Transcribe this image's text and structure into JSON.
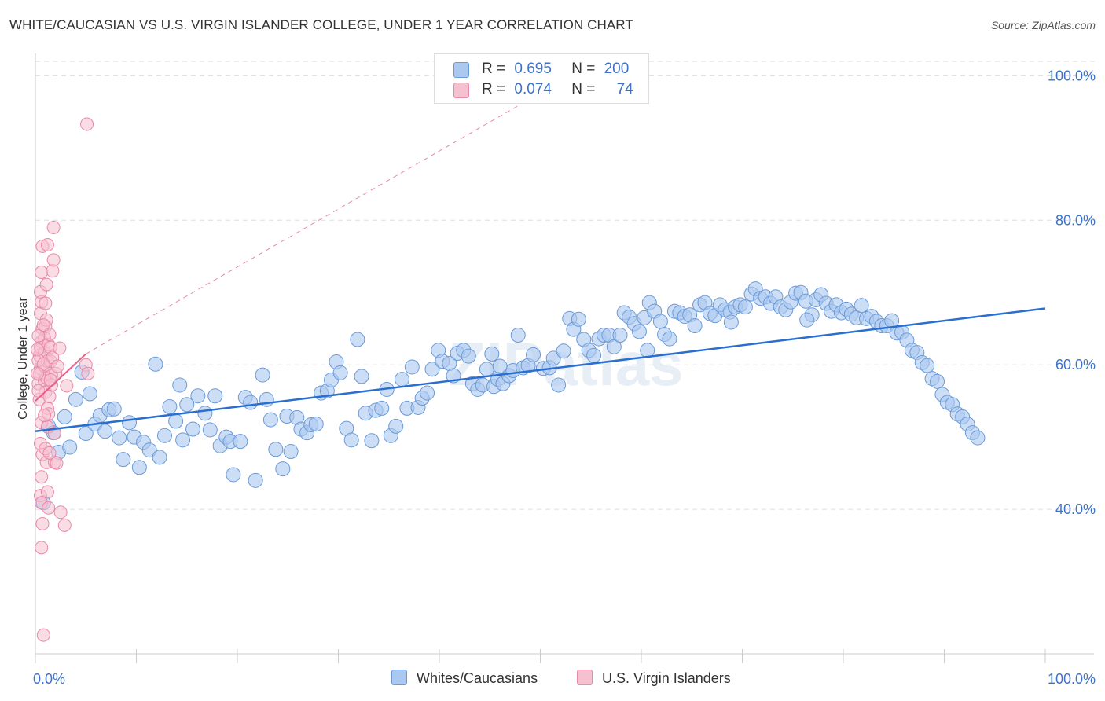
{
  "title": "WHITE/CAUCASIAN VS U.S. VIRGIN ISLANDER COLLEGE, UNDER 1 YEAR CORRELATION CHART",
  "source": "Source: ZipAtlas.com",
  "legend_top": {
    "rows": [
      {
        "r_label": "R =",
        "r_value": "0.695",
        "n_label": "N =",
        "n_value": "200"
      },
      {
        "r_label": "R =",
        "r_value": "0.074",
        "n_label": "N =",
        "n_value": "74"
      }
    ]
  },
  "colors": {
    "blue_fill": "#aac8f0",
    "blue_stroke": "#6a9ad8",
    "blue_line": "#2a6fcf",
    "pink_fill": "#f6c0d0",
    "pink_stroke": "#e889a8",
    "pink_line": "#e8608a",
    "grid": "#dddddd",
    "axis_label": "#3d72c8"
  },
  "chart_data": {
    "type": "scatter",
    "title": "WHITE/CAUCASIAN VS U.S. VIRGIN ISLANDER COLLEGE, UNDER 1 YEAR CORRELATION CHART",
    "xlabel": "",
    "ylabel": "College, Under 1 year",
    "xlim": [
      0,
      100
    ],
    "ylim": [
      20,
      102
    ],
    "x_tick_labels": [
      "0.0%",
      "100.0%"
    ],
    "y_ticks": [
      40,
      60,
      80,
      100
    ],
    "y_tick_labels": [
      "40.0%",
      "60.0%",
      "80.0%",
      "100.0%"
    ],
    "grid": true,
    "legend_position": "top-center",
    "series": [
      {
        "name": "Whites/Caucasians",
        "r": 0.695,
        "n": 200,
        "trend": {
          "x": [
            0,
            100
          ],
          "y": [
            50.8,
            67.8
          ]
        },
        "points": [
          [
            0.8,
            40.9
          ],
          [
            1.3,
            51.5
          ],
          [
            1.8,
            50.6
          ],
          [
            2.3,
            47.9
          ],
          [
            2.9,
            52.8
          ],
          [
            3.4,
            48.6
          ],
          [
            4.0,
            55.2
          ],
          [
            4.6,
            59.0
          ],
          [
            5.0,
            50.5
          ],
          [
            5.4,
            56.0
          ],
          [
            5.9,
            51.8
          ],
          [
            6.4,
            53.0
          ],
          [
            6.9,
            50.8
          ],
          [
            7.3,
            53.8
          ],
          [
            7.8,
            53.9
          ],
          [
            8.3,
            49.9
          ],
          [
            8.7,
            46.9
          ],
          [
            9.3,
            52.0
          ],
          [
            9.8,
            50.0
          ],
          [
            10.3,
            45.8
          ],
          [
            10.7,
            49.3
          ],
          [
            11.3,
            48.2
          ],
          [
            11.9,
            60.1
          ],
          [
            12.3,
            47.2
          ],
          [
            12.8,
            50.2
          ],
          [
            13.3,
            54.2
          ],
          [
            13.9,
            52.2
          ],
          [
            14.3,
            57.2
          ],
          [
            14.6,
            49.6
          ],
          [
            15.0,
            54.5
          ],
          [
            15.6,
            51.1
          ],
          [
            16.1,
            55.7
          ],
          [
            16.8,
            53.3
          ],
          [
            17.3,
            51.0
          ],
          [
            17.8,
            55.7
          ],
          [
            18.3,
            48.8
          ],
          [
            18.9,
            50.0
          ],
          [
            19.3,
            49.4
          ],
          [
            19.6,
            44.8
          ],
          [
            20.3,
            49.4
          ],
          [
            20.8,
            55.5
          ],
          [
            21.3,
            54.8
          ],
          [
            21.8,
            44.0
          ],
          [
            22.5,
            58.6
          ],
          [
            22.9,
            55.2
          ],
          [
            23.3,
            52.4
          ],
          [
            23.8,
            48.3
          ],
          [
            24.5,
            45.6
          ],
          [
            24.9,
            52.9
          ],
          [
            25.3,
            48.0
          ],
          [
            25.9,
            52.7
          ],
          [
            26.3,
            51.1
          ],
          [
            26.9,
            50.6
          ],
          [
            27.3,
            51.7
          ],
          [
            27.8,
            51.8
          ],
          [
            28.3,
            56.1
          ],
          [
            28.9,
            56.4
          ],
          [
            29.3,
            57.9
          ],
          [
            29.8,
            60.4
          ],
          [
            30.2,
            58.9
          ],
          [
            30.8,
            51.2
          ],
          [
            31.3,
            49.6
          ],
          [
            31.9,
            63.5
          ],
          [
            32.3,
            58.4
          ],
          [
            32.7,
            53.3
          ],
          [
            33.3,
            49.5
          ],
          [
            33.7,
            53.7
          ],
          [
            34.3,
            54.0
          ],
          [
            34.8,
            56.6
          ],
          [
            35.2,
            50.2
          ],
          [
            35.7,
            51.5
          ],
          [
            36.3,
            58.0
          ],
          [
            36.8,
            54.0
          ],
          [
            37.3,
            59.7
          ],
          [
            37.9,
            54.1
          ],
          [
            38.3,
            55.4
          ],
          [
            38.8,
            56.1
          ],
          [
            39.3,
            59.4
          ],
          [
            39.9,
            62.0
          ],
          [
            40.3,
            60.5
          ],
          [
            41.0,
            60.2
          ],
          [
            41.4,
            58.5
          ],
          [
            41.8,
            61.6
          ],
          [
            42.4,
            62.0
          ],
          [
            42.9,
            61.2
          ],
          [
            43.3,
            57.4
          ],
          [
            43.8,
            56.6
          ],
          [
            44.3,
            57.2
          ],
          [
            44.7,
            59.4
          ],
          [
            45.4,
            57.0
          ],
          [
            45.8,
            58.0
          ],
          [
            46.3,
            57.4
          ],
          [
            46.9,
            58.5
          ],
          [
            47.3,
            59.2
          ],
          [
            47.8,
            64.1
          ],
          [
            48.3,
            59.6
          ],
          [
            48.8,
            59.9
          ],
          [
            49.3,
            61.4
          ],
          [
            50.3,
            59.5
          ],
          [
            50.9,
            59.6
          ],
          [
            51.3,
            60.9
          ],
          [
            51.8,
            57.2
          ],
          [
            52.3,
            61.9
          ],
          [
            52.9,
            66.4
          ],
          [
            53.3,
            64.9
          ],
          [
            53.8,
            66.3
          ],
          [
            54.3,
            63.5
          ],
          [
            54.8,
            62.0
          ],
          [
            55.3,
            61.3
          ],
          [
            55.8,
            63.6
          ],
          [
            56.3,
            64.1
          ],
          [
            56.8,
            64.1
          ],
          [
            57.3,
            62.5
          ],
          [
            57.9,
            64.1
          ],
          [
            58.3,
            67.2
          ],
          [
            58.8,
            66.6
          ],
          [
            59.3,
            65.7
          ],
          [
            59.8,
            64.6
          ],
          [
            60.3,
            66.5
          ],
          [
            60.8,
            68.6
          ],
          [
            61.3,
            67.4
          ],
          [
            61.9,
            66.0
          ],
          [
            62.3,
            64.2
          ],
          [
            62.8,
            63.6
          ],
          [
            63.3,
            67.4
          ],
          [
            63.8,
            67.2
          ],
          [
            64.3,
            66.7
          ],
          [
            64.8,
            66.9
          ],
          [
            65.3,
            65.4
          ],
          [
            65.8,
            68.3
          ],
          [
            66.3,
            68.6
          ],
          [
            66.8,
            67.1
          ],
          [
            67.3,
            66.8
          ],
          [
            67.8,
            68.3
          ],
          [
            68.3,
            67.6
          ],
          [
            68.8,
            67.3
          ],
          [
            69.3,
            68.0
          ],
          [
            69.8,
            68.3
          ],
          [
            70.3,
            68.0
          ],
          [
            70.9,
            69.8
          ],
          [
            71.3,
            70.5
          ],
          [
            71.8,
            69.2
          ],
          [
            72.3,
            69.4
          ],
          [
            72.8,
            68.5
          ],
          [
            73.3,
            69.4
          ],
          [
            73.8,
            68.0
          ],
          [
            74.3,
            67.6
          ],
          [
            74.8,
            68.7
          ],
          [
            75.3,
            69.9
          ],
          [
            75.8,
            70.0
          ],
          [
            76.3,
            68.8
          ],
          [
            76.9,
            66.9
          ],
          [
            77.3,
            69.0
          ],
          [
            77.8,
            69.7
          ],
          [
            78.3,
            68.5
          ],
          [
            78.8,
            67.4
          ],
          [
            79.3,
            68.3
          ],
          [
            79.8,
            67.2
          ],
          [
            80.3,
            67.7
          ],
          [
            80.8,
            67.0
          ],
          [
            81.3,
            66.5
          ],
          [
            81.8,
            68.2
          ],
          [
            82.3,
            66.4
          ],
          [
            82.8,
            66.7
          ],
          [
            83.3,
            66.0
          ],
          [
            83.8,
            65.4
          ],
          [
            84.3,
            65.4
          ],
          [
            84.8,
            66.1
          ],
          [
            85.3,
            64.4
          ],
          [
            85.8,
            64.5
          ],
          [
            86.3,
            63.4
          ],
          [
            86.8,
            62.0
          ],
          [
            87.3,
            61.7
          ],
          [
            87.8,
            60.3
          ],
          [
            88.3,
            59.9
          ],
          [
            88.8,
            58.1
          ],
          [
            89.3,
            57.7
          ],
          [
            89.8,
            55.9
          ],
          [
            90.3,
            54.8
          ],
          [
            90.8,
            54.5
          ],
          [
            91.3,
            53.2
          ],
          [
            91.8,
            52.8
          ],
          [
            92.3,
            51.8
          ],
          [
            92.8,
            50.6
          ],
          [
            93.3,
            49.9
          ],
          [
            45.2,
            61.5
          ],
          [
            46.0,
            59.8
          ],
          [
            60.6,
            62.0
          ],
          [
            68.9,
            65.9
          ],
          [
            76.4,
            66.2
          ]
        ]
      },
      {
        "name": "U.S. Virgin Islanders",
        "r": 0.074,
        "n": 74,
        "trend": {
          "x": [
            0,
            5
          ],
          "y": [
            55.0,
            61.5
          ]
        },
        "dashed_extension": {
          "x": [
            5,
            48
          ],
          "y": [
            61.5,
            96
          ]
        },
        "points": [
          [
            0.3,
            57.4
          ],
          [
            0.4,
            61.3
          ],
          [
            0.5,
            59.5
          ],
          [
            0.6,
            63.2
          ],
          [
            0.4,
            55.2
          ],
          [
            0.7,
            65.0
          ],
          [
            0.5,
            67.1
          ],
          [
            0.6,
            68.7
          ],
          [
            0.5,
            70.1
          ],
          [
            0.6,
            72.8
          ],
          [
            0.7,
            76.4
          ],
          [
            0.5,
            62.4
          ],
          [
            0.4,
            58.7
          ],
          [
            0.6,
            52.0
          ],
          [
            0.5,
            49.1
          ],
          [
            0.7,
            47.6
          ],
          [
            0.6,
            44.5
          ],
          [
            0.5,
            41.9
          ],
          [
            0.6,
            40.9
          ],
          [
            0.7,
            38.0
          ],
          [
            0.6,
            34.7
          ],
          [
            0.8,
            22.6
          ],
          [
            0.9,
            57.8
          ],
          [
            0.9,
            59.8
          ],
          [
            0.9,
            61.7
          ],
          [
            0.9,
            63.7
          ],
          [
            1.0,
            65.3
          ],
          [
            1.1,
            66.2
          ],
          [
            1.1,
            71.1
          ],
          [
            1.2,
            76.6
          ],
          [
            1.3,
            62.8
          ],
          [
            1.2,
            60.5
          ],
          [
            1.1,
            58.2
          ],
          [
            1.0,
            56.2
          ],
          [
            1.2,
            54.0
          ],
          [
            1.3,
            53.2
          ],
          [
            1.2,
            51.4
          ],
          [
            1.0,
            48.4
          ],
          [
            1.1,
            46.5
          ],
          [
            1.2,
            42.4
          ],
          [
            1.3,
            40.2
          ],
          [
            1.4,
            64.2
          ],
          [
            1.5,
            62.4
          ],
          [
            1.5,
            60.5
          ],
          [
            1.6,
            58.5
          ],
          [
            1.6,
            57.2
          ],
          [
            1.7,
            73.0
          ],
          [
            1.8,
            74.5
          ],
          [
            1.8,
            79.0
          ],
          [
            1.7,
            61.0
          ],
          [
            1.9,
            46.5
          ],
          [
            2.0,
            58.8
          ],
          [
            2.2,
            59.8
          ],
          [
            2.4,
            62.3
          ],
          [
            2.5,
            39.6
          ],
          [
            2.9,
            37.8
          ],
          [
            3.1,
            57.1
          ],
          [
            5.0,
            60.0
          ],
          [
            5.2,
            58.8
          ],
          [
            5.1,
            93.3
          ],
          [
            0.3,
            60.6
          ],
          [
            0.3,
            64.0
          ],
          [
            0.3,
            56.4
          ],
          [
            0.8,
            65.5
          ],
          [
            0.8,
            60.1
          ],
          [
            1.4,
            55.6
          ],
          [
            1.4,
            47.8
          ],
          [
            1.9,
            50.5
          ],
          [
            2.1,
            46.4
          ],
          [
            0.2,
            58.8
          ],
          [
            0.2,
            62.1
          ],
          [
            1.0,
            68.5
          ],
          [
            0.9,
            53.0
          ],
          [
            1.5,
            57.9
          ]
        ]
      }
    ]
  },
  "legend_bottom": {
    "items": [
      "Whites/Caucasians",
      "U.S. Virgin Islanders"
    ]
  },
  "watermark": "ZIPatlas"
}
